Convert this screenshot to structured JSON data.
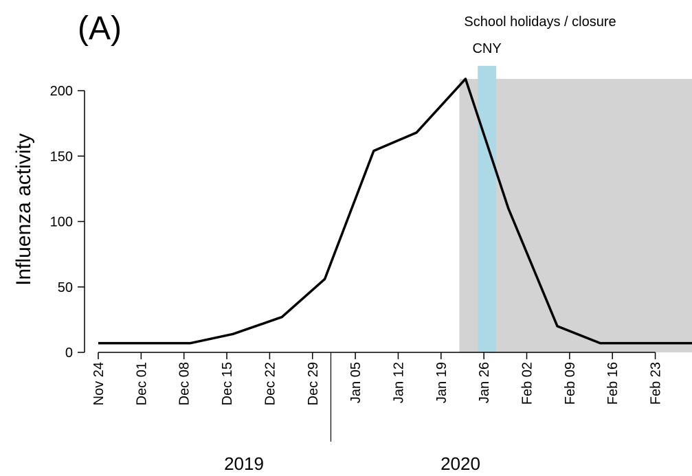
{
  "chart_data": {
    "type": "line",
    "title": "(A)",
    "y_label": "Influenza activity",
    "x": [
      "2019-11-24",
      "2019-12-01",
      "2019-12-09",
      "2019-12-16",
      "2019-12-24",
      "2019-12-31",
      "2020-01-08",
      "2020-01-15",
      "2020-01-23",
      "2020-01-30",
      "2020-02-07",
      "2020-02-14",
      "2020-02-21",
      "2020-02-29"
    ],
    "series": [
      {
        "name": "Influenza activity",
        "color": "#000000",
        "values": [
          7,
          7,
          7,
          14,
          27,
          56,
          154,
          168,
          209,
          110,
          20,
          7,
          7,
          7
        ]
      }
    ],
    "xlim": [
      "2019-11-24",
      "2020-02-29"
    ],
    "xticks": [
      {
        "value": "2019-11-24",
        "label": "Nov 24"
      },
      {
        "value": "2019-12-01",
        "label": "Dec 01"
      },
      {
        "value": "2019-12-08",
        "label": "Dec 08"
      },
      {
        "value": "2019-12-15",
        "label": "Dec 15"
      },
      {
        "value": "2019-12-22",
        "label": "Dec 22"
      },
      {
        "value": "2019-12-29",
        "label": "Dec 29"
      },
      {
        "value": "2020-01-05",
        "label": "Jan 05"
      },
      {
        "value": "2020-01-12",
        "label": "Jan 12"
      },
      {
        "value": "2020-01-19",
        "label": "Jan 19"
      },
      {
        "value": "2020-01-26",
        "label": "Jan 26"
      },
      {
        "value": "2020-02-02",
        "label": "Feb 02"
      },
      {
        "value": "2020-02-09",
        "label": "Feb 09"
      },
      {
        "value": "2020-02-16",
        "label": "Feb 16"
      },
      {
        "value": "2020-02-23",
        "label": "Feb 23"
      }
    ],
    "ylim": [
      0,
      200
    ],
    "yticks": [
      0,
      50,
      100,
      150,
      200
    ],
    "year_break": "2020-01-01",
    "years": [
      "2019",
      "2020"
    ],
    "shaded_regions": [
      {
        "label": "School holidays / closure",
        "start": "2020-01-22",
        "end": "2020-02-29",
        "top": 209,
        "color": "#d3d3d3",
        "label_color": "#000000"
      },
      {
        "label": "CNY",
        "start": "2020-01-25",
        "end": "2020-01-28",
        "top": 219,
        "color": "#add8e6",
        "label_color": "#1a1aee"
      }
    ]
  }
}
